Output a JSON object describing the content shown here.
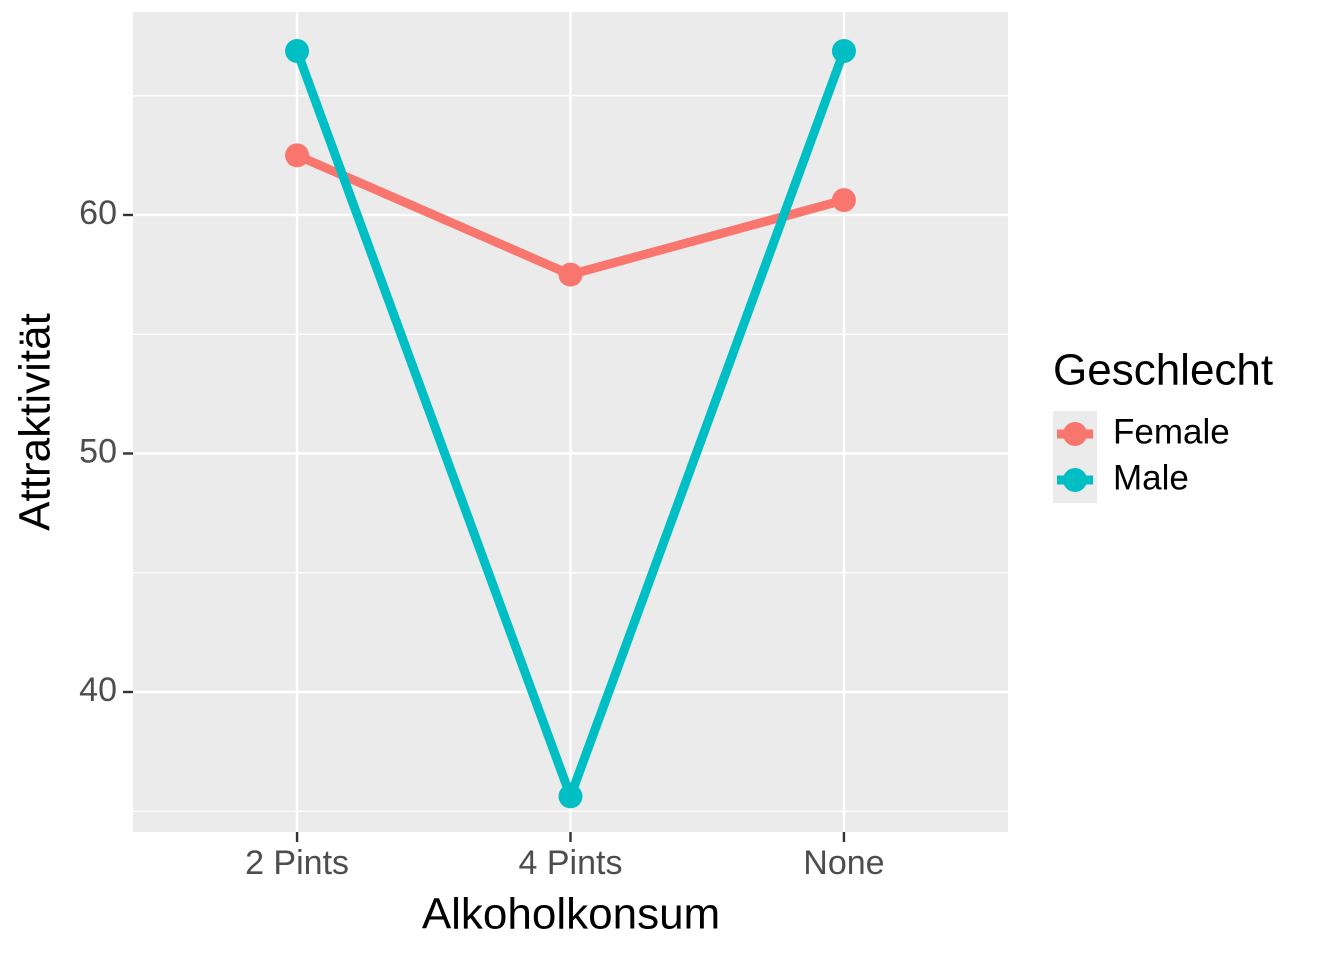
{
  "chart_data": {
    "type": "line",
    "x_label": "Alkoholkonsum",
    "y_label": "Attraktivität",
    "categories": [
      "2 Pints",
      "4 Pints",
      "None"
    ],
    "series": [
      {
        "name": "Female",
        "color": "#f8766d",
        "values": [
          62.5,
          57.5,
          60.625
        ]
      },
      {
        "name": "Male",
        "color": "#00bfc4",
        "values": [
          66.875,
          35.625,
          66.875
        ]
      }
    ],
    "legend_title": "Geschlecht",
    "legend_position": "right",
    "ylim": [
      34.13,
      68.51
    ],
    "yticks": [
      40,
      50,
      60
    ],
    "minor_yticks": [
      35,
      45,
      55,
      65
    ],
    "grid": true
  }
}
